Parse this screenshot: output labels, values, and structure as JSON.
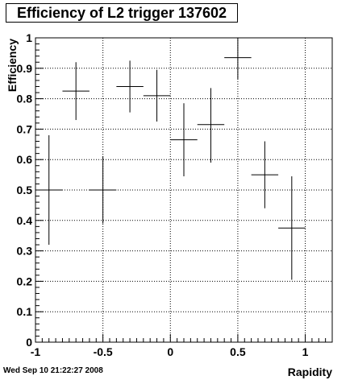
{
  "chart_data": {
    "type": "scatter",
    "title": "Efficiency of L2 trigger 137602",
    "xlabel": "Rapidity",
    "ylabel": "Efficiency",
    "xlim": [
      -1,
      1.2
    ],
    "ylim": [
      0,
      1
    ],
    "xticks": [
      -1,
      -0.5,
      0,
      0.5,
      1
    ],
    "xtick_labels": [
      "-1",
      "-0.5",
      "0",
      "0.5",
      "1"
    ],
    "yticks": [
      0,
      0.1,
      0.2,
      0.3,
      0.4,
      0.5,
      0.6,
      0.7,
      0.8,
      0.9,
      1
    ],
    "ytick_labels": [
      "0",
      "0.1",
      "0.2",
      "0.3",
      "0.4",
      "0.5",
      "0.6",
      "0.7",
      "0.8",
      "0.9",
      "1"
    ],
    "grid": true,
    "legend": "none",
    "series": [
      {
        "points": [
          {
            "x": -0.9,
            "y": 0.5,
            "xerr": 0.1,
            "ylow": 0.32,
            "yhigh": 0.68
          },
          {
            "x": -0.7,
            "y": 0.825,
            "xerr": 0.1,
            "ylow": 0.73,
            "yhigh": 0.92
          },
          {
            "x": -0.5,
            "y": 0.5,
            "xerr": 0.1,
            "ylow": 0.39,
            "yhigh": 0.61
          },
          {
            "x": -0.3,
            "y": 0.84,
            "xerr": 0.1,
            "ylow": 0.755,
            "yhigh": 0.925
          },
          {
            "x": -0.1,
            "y": 0.81,
            "xerr": 0.1,
            "ylow": 0.725,
            "yhigh": 0.895
          },
          {
            "x": 0.1,
            "y": 0.665,
            "xerr": 0.1,
            "ylow": 0.545,
            "yhigh": 0.785
          },
          {
            "x": 0.3,
            "y": 0.715,
            "xerr": 0.1,
            "ylow": 0.59,
            "yhigh": 0.835
          },
          {
            "x": 0.5,
            "y": 0.935,
            "xerr": 0.1,
            "ylow": 0.865,
            "yhigh": 1.0
          },
          {
            "x": 0.7,
            "y": 0.55,
            "xerr": 0.1,
            "ylow": 0.44,
            "yhigh": 0.66
          },
          {
            "x": 0.9,
            "y": 0.375,
            "xerr": 0.1,
            "ylow": 0.205,
            "yhigh": 0.545
          }
        ]
      }
    ]
  },
  "footer": {
    "timestamp": "Wed Sep 10 21:22:27 2008"
  }
}
